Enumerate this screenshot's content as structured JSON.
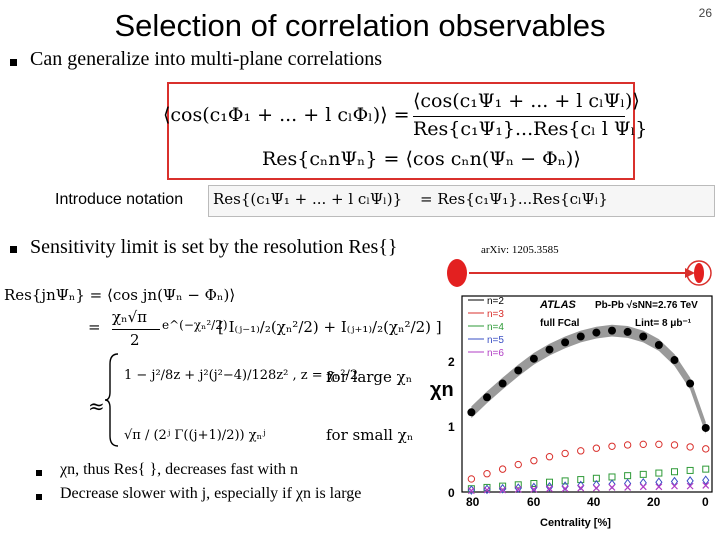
{
  "slide": {
    "title": "Selection of correlation observables",
    "page_number": "26",
    "bullet1": "Can generalize into multi-plane correlations",
    "notation_label": "Introduce notation",
    "bullet2": "Sensitivity limit is set by the resolution Res{}",
    "arxiv": "arXiv: 1205.3585",
    "sub_bullets": [
      "χn, thus Res{ }, decreases fast with n",
      "Decrease slower with j, especially if χn is large"
    ]
  },
  "equations": {
    "eq1_lhs": "⟨cos(c₁Φ₁ + ... + l cₗΦₗ)⟩  =",
    "eq1_num": "⟨cos(c₁Ψ₁ + ... + l cₗΨₗ)⟩",
    "eq1_den": "Res{c₁Ψ₁}...Res{cₗ l Ψₗ}",
    "eq2": "Res{cₙnΨₙ}  =  ⟨cos cₙn(Ψₙ − Φₙ)⟩",
    "notation_lhs": "Res{(c₁Ψ₁ + ... + l cₗΨₗ)}",
    "notation_rhs": "=  Res{c₁Ψ₁}...Res{cₗΨₗ}",
    "res_lhs": "Res{jnΨₙ}  =  ⟨cos jn(Ψₙ − Φₙ)⟩",
    "res_eq": "=",
    "res_prefix": "χₙ√π",
    "res_exp": "e^(−χₙ²/2)",
    "res_bracket": "[ I₍ⱼ₋₁₎/₂(χₙ²/2) + I₍ⱼ₊₁₎/₂(χₙ²/2) ]",
    "two": "2",
    "approx": "≈",
    "large_expr": "1 − j²/8z + j²(j²−4)/128z² ,  z = χₙ²/2",
    "large_label": "for large χₙ",
    "small_expr": "√π / (2ʲ Γ((j+1)/2)) χₙʲ",
    "small_label": "for small χₙ"
  },
  "chart_data": {
    "type": "scatter",
    "legend": [
      "n=2",
      "n=3",
      "n=4",
      "n=5",
      "n=6"
    ],
    "annotations": [
      "ATLAS",
      "Pb-Pb √sNN=2.76 TeV",
      "full FCal",
      "Lint= 8 μb⁻¹"
    ],
    "ylabel": "χn",
    "xlabel": "Centrality [%]",
    "xlim": [
      80,
      0
    ],
    "ylim": [
      0,
      3
    ],
    "xticks": [
      "80",
      "60",
      "40",
      "20",
      "0"
    ],
    "yticks": [
      "0",
      "1",
      "2"
    ],
    "x": [
      77,
      72,
      67,
      62,
      57,
      52,
      47,
      42,
      37,
      32,
      27,
      22,
      17,
      12,
      7,
      2
    ],
    "series": [
      {
        "name": "n=2",
        "color": "#000000",
        "marker": "circle-filled",
        "values": [
          1.22,
          1.45,
          1.66,
          1.86,
          2.04,
          2.18,
          2.29,
          2.38,
          2.44,
          2.47,
          2.45,
          2.38,
          2.25,
          2.02,
          1.66,
          0.98
        ]
      },
      {
        "name": "n=3",
        "color": "#d9302c",
        "marker": "circle-open",
        "values": [
          0.2,
          0.28,
          0.35,
          0.42,
          0.48,
          0.54,
          0.59,
          0.63,
          0.67,
          0.7,
          0.72,
          0.73,
          0.73,
          0.72,
          0.69,
          0.66
        ]
      },
      {
        "name": "n=4",
        "color": "#2e9a37",
        "marker": "square-open",
        "values": [
          0.05,
          0.07,
          0.09,
          0.11,
          0.13,
          0.15,
          0.17,
          0.19,
          0.21,
          0.23,
          0.25,
          0.27,
          0.29,
          0.31,
          0.33,
          0.35
        ]
      },
      {
        "name": "n=5",
        "color": "#3a4fc4",
        "marker": "diamond-open",
        "values": [
          0.03,
          0.04,
          0.05,
          0.06,
          0.07,
          0.08,
          0.09,
          0.1,
          0.11,
          0.12,
          0.13,
          0.14,
          0.15,
          0.16,
          0.17,
          0.18
        ]
      },
      {
        "name": "n=6",
        "color": "#b03cc4",
        "marker": "cross",
        "values": [
          0.02,
          0.03,
          0.03,
          0.04,
          0.04,
          0.05,
          0.05,
          0.06,
          0.06,
          0.07,
          0.07,
          0.08,
          0.08,
          0.09,
          0.09,
          0.1
        ]
      }
    ]
  }
}
